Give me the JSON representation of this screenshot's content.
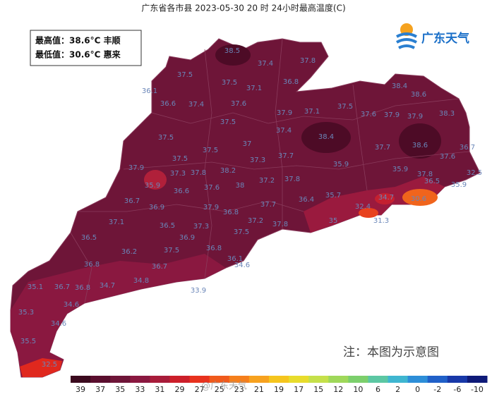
{
  "title": "广东省各市县 2023-05-30 20 时 24小时最高温度(C)",
  "info": [
    "最高值：38.6°C 丰顺",
    "最低值：30.6°C 惠来"
  ],
  "logo": "广东天气",
  "note": "注：本图为示意图",
  "watermark": "@广东天气",
  "map_labels": [
    38.5,
    37.4,
    37.8,
    37.5,
    36.8,
    37.5,
    37.1,
    36.1,
    36.6,
    37.4,
    37.6,
    37.9,
    37.1,
    37.5,
    37.6,
    37.9,
    37.9,
    38.3,
    38.4,
    38.6,
    37.5,
    37.4,
    38.4,
    37.5,
    37.5,
    37,
    37.7,
    37.7,
    38.6,
    37.6,
    36.7,
    32.5,
    37.5,
    37.3,
    37.9,
    35.9,
    37.3,
    37.8,
    38.2,
    37.8,
    37.2,
    35.9,
    35.9,
    37.8,
    35.9,
    36.6,
    38,
    37.6,
    36.7,
    36.9,
    37.9,
    37.7,
    36.4,
    35.7,
    34.7,
    32.4,
    36.5,
    30.6,
    36.8,
    37.3,
    37.1,
    36.5,
    36.5,
    37.5,
    36.9,
    31.3,
    37.2,
    37.8,
    35,
    36.2,
    37.5,
    36.8,
    36.8,
    36.1,
    34.6,
    36.7,
    33.9,
    35.1,
    36.7,
    36.8,
    34.7,
    34.8,
    34.6,
    35.3,
    34.6,
    35.5,
    32.5
  ],
  "colorbar": {
    "labels": [
      39,
      37,
      35,
      33,
      31,
      29,
      27,
      25,
      23,
      21,
      19,
      17,
      15,
      12,
      10,
      6,
      2,
      0,
      -2,
      -6,
      -10
    ],
    "colors": [
      "#3b0a1e",
      "#5a0e2e",
      "#6e1538",
      "#8a1840",
      "#a81c3a",
      "#cc1f2a",
      "#e8321e",
      "#f05a1c",
      "#f57f1c",
      "#f7a21f",
      "#f5c51e",
      "#e8dc2c",
      "#c5e04a",
      "#9fd85a",
      "#7ccf6c",
      "#5cc7a3",
      "#3fb6d0",
      "#2d8ed8",
      "#2060c8",
      "#1838a8",
      "#0e1a78"
    ]
  }
}
